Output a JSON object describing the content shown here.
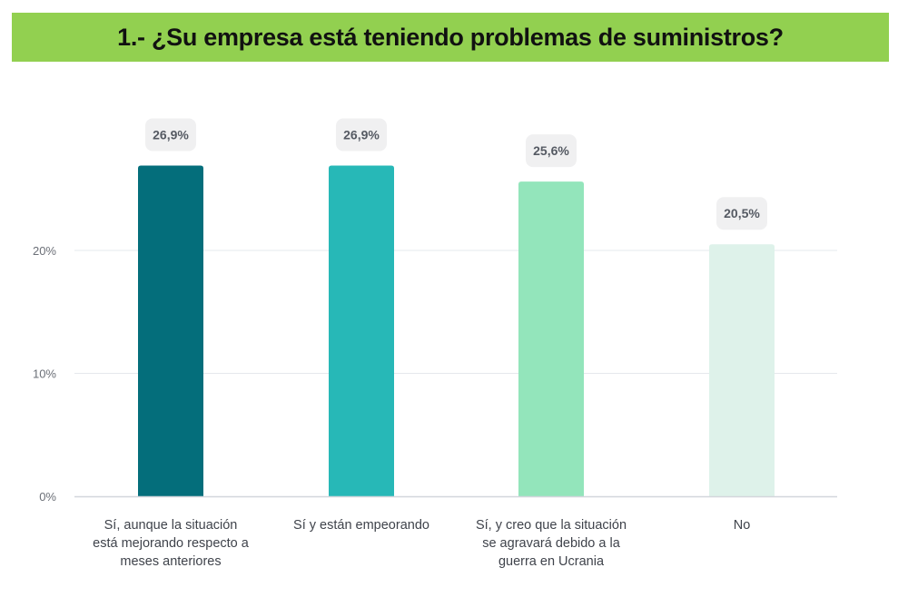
{
  "header": {
    "title": "1.- ¿Su empresa está teniendo problemas de suministros?"
  },
  "colors": {
    "title_bar": "#92d050",
    "grid": "#e6e8ec",
    "baseline": "#d3d6dc",
    "label_badge": "#f0f0f1"
  },
  "chart_data": {
    "type": "bar",
    "categories": [
      "Sí, aunque la situación está mejorando respecto a meses anteriores",
      "Sí y están empeorando",
      "Sí, y creo que la situación se agravará debido a la guerra en Ucrania",
      "No"
    ],
    "category_lines": [
      [
        "Sí, aunque la situación",
        "está mejorando respecto a",
        "meses anteriores"
      ],
      [
        "Sí y están empeorando"
      ],
      [
        "Sí, y creo que la situación",
        "se agravará debido a la",
        "guerra en Ucrania"
      ],
      [
        "No"
      ]
    ],
    "values": [
      26.9,
      26.9,
      25.6,
      20.5
    ],
    "value_labels": [
      "26,9%",
      "26,9%",
      "25,6%",
      "20,5%"
    ],
    "bar_colors": [
      "#046e7b",
      "#27b8b7",
      "#93e5bb",
      "#def2ea"
    ],
    "yticks": [
      0,
      10,
      20
    ],
    "ytick_labels": [
      "0%",
      "10%",
      "20%"
    ],
    "ylim": [
      0,
      30
    ],
    "grid": true,
    "legend": "none"
  }
}
